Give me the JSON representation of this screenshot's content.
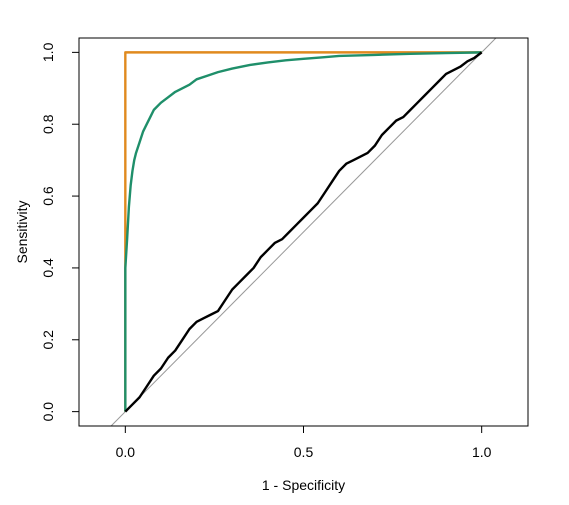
{
  "chart_data": {
    "type": "line",
    "title": "",
    "xlabel": "1 - Specificity",
    "ylabel": "Sensitivity",
    "xlim": [
      -0.13,
      1.13
    ],
    "ylim": [
      -0.04,
      1.04
    ],
    "xticks": [
      0.0,
      0.5,
      1.0
    ],
    "xtick_labels": [
      "0.0",
      "0.5",
      "1.0"
    ],
    "yticks": [
      0.0,
      0.2,
      0.4,
      0.6,
      0.8,
      1.0
    ],
    "ytick_labels": [
      "0.0",
      "0.2",
      "0.4",
      "0.6",
      "0.8",
      "1.0"
    ],
    "grid": false,
    "legend": "none",
    "reference_line": {
      "slope": 1,
      "intercept": 0,
      "color": "#999999"
    },
    "series": [
      {
        "color": "#E08A1E",
        "x": [
          0.0,
          0.0,
          0.0,
          0.0,
          1.0
        ],
        "y": [
          0.0,
          0.25,
          0.6,
          1.0,
          1.0
        ]
      },
      {
        "color": "#1F8F6A",
        "x": [
          0.0,
          0.0,
          0.0,
          0.005,
          0.01,
          0.015,
          0.02,
          0.025,
          0.03,
          0.04,
          0.05,
          0.06,
          0.07,
          0.08,
          0.1,
          0.12,
          0.14,
          0.16,
          0.18,
          0.2,
          0.23,
          0.26,
          0.3,
          0.35,
          0.4,
          0.45,
          0.5,
          0.55,
          0.6,
          0.7,
          0.8,
          0.9,
          1.0
        ],
        "y": [
          0.0,
          0.2,
          0.4,
          0.48,
          0.57,
          0.63,
          0.67,
          0.7,
          0.72,
          0.75,
          0.78,
          0.8,
          0.82,
          0.84,
          0.86,
          0.875,
          0.89,
          0.9,
          0.91,
          0.925,
          0.935,
          0.945,
          0.955,
          0.965,
          0.972,
          0.978,
          0.982,
          0.986,
          0.99,
          0.993,
          0.996,
          0.998,
          1.0
        ]
      },
      {
        "color": "#000000",
        "x": [
          0.0,
          0.02,
          0.04,
          0.06,
          0.08,
          0.1,
          0.12,
          0.14,
          0.16,
          0.18,
          0.2,
          0.22,
          0.24,
          0.26,
          0.28,
          0.3,
          0.32,
          0.34,
          0.36,
          0.38,
          0.4,
          0.42,
          0.44,
          0.46,
          0.48,
          0.5,
          0.52,
          0.54,
          0.56,
          0.58,
          0.6,
          0.62,
          0.64,
          0.66,
          0.68,
          0.7,
          0.72,
          0.74,
          0.76,
          0.78,
          0.8,
          0.82,
          0.84,
          0.86,
          0.88,
          0.9,
          0.92,
          0.94,
          0.96,
          0.98,
          1.0
        ],
        "y": [
          0.0,
          0.02,
          0.04,
          0.07,
          0.1,
          0.12,
          0.15,
          0.17,
          0.2,
          0.23,
          0.25,
          0.26,
          0.27,
          0.28,
          0.31,
          0.34,
          0.36,
          0.38,
          0.4,
          0.43,
          0.45,
          0.47,
          0.48,
          0.5,
          0.52,
          0.54,
          0.56,
          0.58,
          0.61,
          0.64,
          0.67,
          0.69,
          0.7,
          0.71,
          0.72,
          0.74,
          0.77,
          0.79,
          0.81,
          0.82,
          0.84,
          0.86,
          0.88,
          0.9,
          0.92,
          0.94,
          0.95,
          0.96,
          0.975,
          0.985,
          1.0
        ]
      }
    ]
  }
}
